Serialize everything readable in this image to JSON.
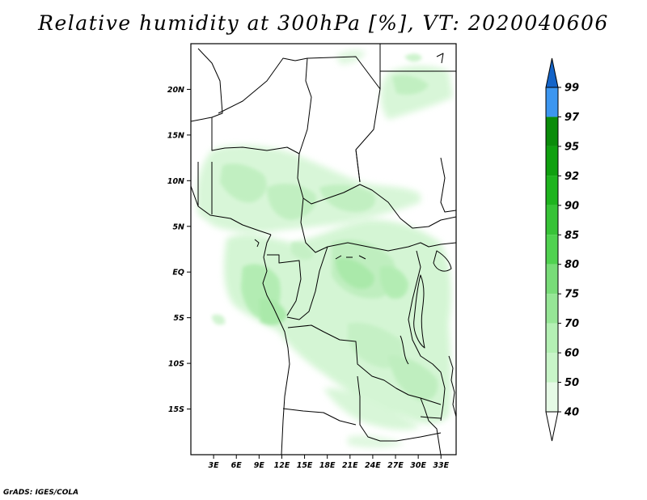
{
  "title": "Relative humidity at 300hPa [%], VT: 2020040606",
  "credit": "GrADS: IGES/COLA",
  "map": {
    "lon_range": [
      0,
      35
    ],
    "lat_range": [
      -20,
      25
    ],
    "lon_ticks": [
      {
        "lon": 3,
        "label": "3E"
      },
      {
        "lon": 6,
        "label": "6E"
      },
      {
        "lon": 9,
        "label": "9E"
      },
      {
        "lon": 12,
        "label": "12E"
      },
      {
        "lon": 15,
        "label": "15E"
      },
      {
        "lon": 18,
        "label": "18E"
      },
      {
        "lon": 21,
        "label": "21E"
      },
      {
        "lon": 24,
        "label": "24E"
      },
      {
        "lon": 27,
        "label": "27E"
      },
      {
        "lon": 30,
        "label": "30E"
      },
      {
        "lon": 33,
        "label": "33E"
      }
    ],
    "lat_ticks": [
      {
        "lat": 20,
        "label": "20N"
      },
      {
        "lat": 15,
        "label": "15N"
      },
      {
        "lat": 10,
        "label": "10N"
      },
      {
        "lat": 5,
        "label": "5N"
      },
      {
        "lat": 0,
        "label": "EQ"
      },
      {
        "lat": -5,
        "label": "5S"
      },
      {
        "lat": -10,
        "label": "10S"
      },
      {
        "lat": -15,
        "label": "15S"
      }
    ]
  },
  "colorbar": {
    "levels": [
      {
        "label": "40",
        "color": "#e6fae6"
      },
      {
        "label": "50",
        "color": "#c8f5c8"
      },
      {
        "label": "60",
        "color": "#b4f0b4"
      },
      {
        "label": "70",
        "color": "#96e696"
      },
      {
        "label": "75",
        "color": "#78dc78"
      },
      {
        "label": "80",
        "color": "#50d250"
      },
      {
        "label": "85",
        "color": "#37c337"
      },
      {
        "label": "90",
        "color": "#1eb41e"
      },
      {
        "label": "92",
        "color": "#0fa00f"
      },
      {
        "label": "95",
        "color": "#0a8c0a"
      },
      {
        "label": "97",
        "color": "#3c96f0"
      },
      {
        "label": "99",
        "color": "#1e6ed2"
      }
    ],
    "low_color": "#ffffff",
    "high_color": "#1464c8"
  }
}
